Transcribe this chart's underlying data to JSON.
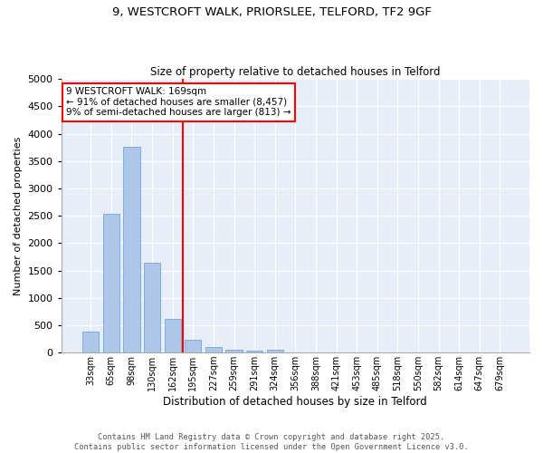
{
  "title_line1": "9, WESTCROFT WALK, PRIORSLEE, TELFORD, TF2 9GF",
  "title_line2": "Size of property relative to detached houses in Telford",
  "xlabel": "Distribution of detached houses by size in Telford",
  "ylabel": "Number of detached properties",
  "categories": [
    "33sqm",
    "65sqm",
    "98sqm",
    "130sqm",
    "162sqm",
    "195sqm",
    "227sqm",
    "259sqm",
    "291sqm",
    "324sqm",
    "356sqm",
    "388sqm",
    "421sqm",
    "453sqm",
    "485sqm",
    "518sqm",
    "550sqm",
    "582sqm",
    "614sqm",
    "647sqm",
    "679sqm"
  ],
  "values": [
    390,
    2540,
    3760,
    1650,
    620,
    230,
    110,
    55,
    35,
    50,
    5,
    3,
    2,
    1,
    0,
    0,
    0,
    0,
    0,
    0,
    0
  ],
  "bar_color": "#aec6e8",
  "bar_edge_color": "#5a9fd4",
  "vline_color": "red",
  "annotation_text": "9 WESTCROFT WALK: 169sqm\n← 91% of detached houses are smaller (8,457)\n9% of semi-detached houses are larger (813) →",
  "annotation_box_color": "white",
  "annotation_box_edge": "red",
  "ylim": [
    0,
    5000
  ],
  "yticks": [
    0,
    500,
    1000,
    1500,
    2000,
    2500,
    3000,
    3500,
    4000,
    4500,
    5000
  ],
  "background_color": "#e8eef8",
  "grid_color": "white",
  "footer_line1": "Contains HM Land Registry data © Crown copyright and database right 2025.",
  "footer_line2": "Contains public sector information licensed under the Open Government Licence v3.0."
}
